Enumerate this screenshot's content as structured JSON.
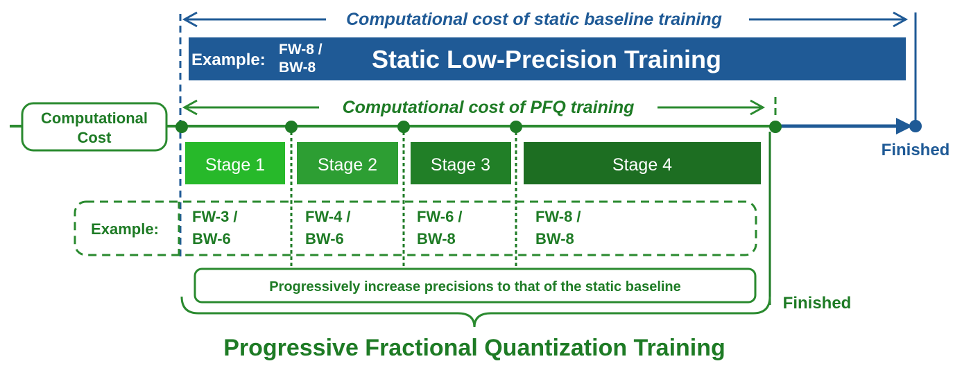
{
  "colors": {
    "blue": "#1f5a96",
    "green_dark": "#1e7b25",
    "green_line": "#2a8a2f",
    "stage1": "#27b92a",
    "stage2": "#2d9e33",
    "stage3": "#217f27",
    "stage4": "#1d6e22"
  },
  "baseline": {
    "cost_label": "Computational cost of static baseline training",
    "example_label": "Example:",
    "example_fw": "FW-8 /",
    "example_bw": "BW-8",
    "title": "Static Low-Precision Training",
    "finished": "Finished"
  },
  "pfq": {
    "cost_label": "Computational cost of PFQ training",
    "axis_label_line1": "Computational",
    "axis_label_line2": "Cost",
    "example_label": "Example:",
    "stages": [
      {
        "label": "Stage 1",
        "fw": "FW-3 /",
        "bw": "BW-6"
      },
      {
        "label": "Stage 2",
        "fw": "FW-4 /",
        "bw": "BW-6"
      },
      {
        "label": "Stage 3",
        "fw": "FW-6 /",
        "bw": "BW-8"
      },
      {
        "label": "Stage 4",
        "fw": "FW-8 /",
        "bw": "BW-8"
      }
    ],
    "progress_note": "Progressively increase precisions to that of the static baseline",
    "finished": "Finished",
    "title": "Progressive Fractional Quantization Training"
  }
}
